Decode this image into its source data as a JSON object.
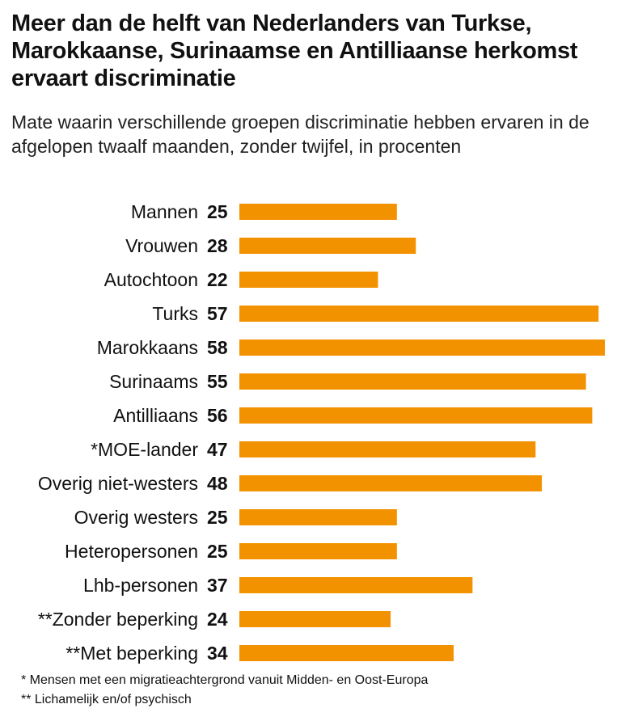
{
  "title": "Meer dan de helft van Nederlanders van Turkse, Marokkaanse, Surinaamse en Antilliaanse herkomst ervaart discriminatie",
  "subtitle": "Mate waarin verschillende groepen discriminatie hebben ervaren in de afgelopen twaalf maanden, zonder twijfel, in procenten",
  "colors": {
    "bar": "#f39200",
    "text": "#111111"
  },
  "chart_data": {
    "type": "bar",
    "orientation": "horizontal",
    "categories": [
      "Mannen",
      "Vrouwen",
      "Autochtoon",
      "Turks",
      "Marokkaans",
      "Surinaams",
      "Antilliaans",
      "*MOE-lander",
      "Overig niet-westers",
      "Overig westers",
      "Heteropersonen",
      "Lhb-personen",
      "**Zonder beperking",
      "**Met beperking"
    ],
    "values": [
      25,
      28,
      22,
      57,
      58,
      55,
      56,
      47,
      48,
      25,
      25,
      37,
      24,
      34
    ],
    "xlim": [
      0,
      58
    ],
    "grid": false,
    "legend": "none",
    "data_labels": true
  },
  "footnotes": [
    "* Mensen met een migratieachtergrond vanuit Midden- en Oost-Europa",
    "** Lichamelijk en/of psychisch"
  ]
}
